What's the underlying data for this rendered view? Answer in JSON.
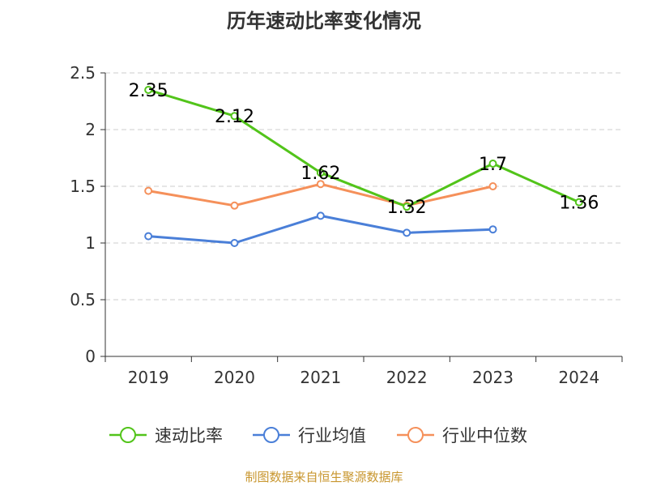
{
  "chart_data": {
    "type": "line",
    "title": "历年速动比率变化情况",
    "categories": [
      "2019",
      "2020",
      "2021",
      "2022",
      "2023",
      "2024"
    ],
    "yticks": [
      "0",
      "0.5",
      "1",
      "1.5",
      "2",
      "2.5"
    ],
    "ylim": [
      0,
      2.5
    ],
    "grid": true,
    "legend_position": "bottom",
    "series": [
      {
        "name": "速动比率",
        "color": "#52c41a",
        "values": [
          2.35,
          2.12,
          1.62,
          1.32,
          1.7,
          1.36
        ],
        "labels": [
          "2.35",
          "2.12",
          "1.62",
          "1.32",
          "1.7",
          "1.36"
        ]
      },
      {
        "name": "行业均值",
        "color": "#4a7fd8",
        "values": [
          1.06,
          1.0,
          1.24,
          1.09,
          1.12,
          null
        ]
      },
      {
        "name": "行业中位数",
        "color": "#f5905a",
        "values": [
          1.46,
          1.33,
          1.52,
          1.33,
          1.5,
          null
        ]
      }
    ]
  },
  "source": "制图数据来自恒生聚源数据库"
}
